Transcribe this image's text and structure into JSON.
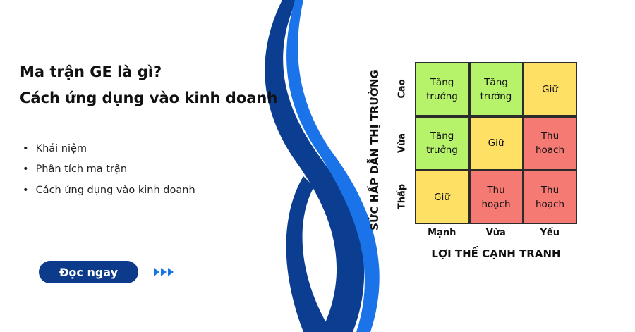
{
  "header": {
    "title_lines": [
      "Ma trận GE là gì?",
      "Cách ứng dụng vào kinh doanh"
    ]
  },
  "bullets": [
    "Khái niệm",
    "Phân tích ma trận",
    "Cách ứng dụng vào kinh doanh"
  ],
  "button": {
    "label": "Đọc ngay"
  },
  "matrix": {
    "y_label": "SỨC HẤP DẪN THỊ TRƯỜNG",
    "x_label": "LỢI THẾ CẠNH TRANH",
    "row_labels": [
      "Cao",
      "Vừa",
      "Thấp"
    ],
    "column_labels": [
      "Mạnh",
      "Vừa",
      "Yếu"
    ],
    "rows": [
      [
        {
          "label": "Tăng trưởng",
          "color": "#b6f36b"
        },
        {
          "label": "Tăng trưởng",
          "color": "#b6f36b"
        },
        {
          "label": "Giữ",
          "color": "#fde064"
        }
      ],
      [
        {
          "label": "Tăng trưởng",
          "color": "#b6f36b"
        },
        {
          "label": "Giữ",
          "color": "#fde064"
        },
        {
          "label": "Thu hoạch",
          "color": "#f47a73"
        }
      ],
      [
        {
          "label": "Giữ",
          "color": "#fde064"
        },
        {
          "label": "Thu hoạch",
          "color": "#f47a73"
        },
        {
          "label": "Thu hoạch",
          "color": "#f47a73"
        }
      ]
    ]
  }
}
